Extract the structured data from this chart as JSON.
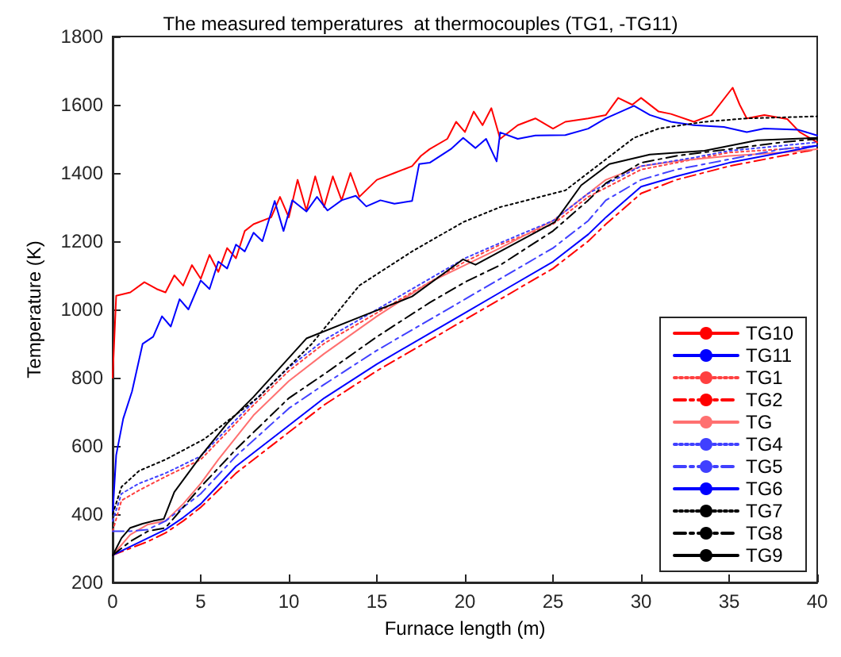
{
  "chart_data": {
    "type": "line",
    "title": "The measured temperatures  at thermocouples (TG1, -TG11)",
    "xlabel": "Furnace length (m)",
    "ylabel": "Temperature (K)",
    "xlim": [
      0,
      40
    ],
    "xticks": [
      0,
      5,
      10,
      15,
      20,
      25,
      30,
      35,
      40
    ],
    "ylim": [
      200,
      1800
    ],
    "yticks": [
      200,
      400,
      600,
      800,
      1000,
      1200,
      1400,
      1600,
      1800
    ],
    "grid": false,
    "legend": "bottom right",
    "marker": "none",
    "series": [
      {
        "name": "TG10",
        "color": "#ff0000",
        "line_style": "solid",
        "x": [
          0,
          0.2,
          1,
          1.8,
          2.5,
          3,
          3.5,
          4,
          4.5,
          5,
          5.5,
          6,
          6.5,
          7,
          7.5,
          8,
          9,
          9.5,
          10,
          10.5,
          11,
          11.5,
          12,
          12.5,
          13,
          13.5,
          14,
          15,
          16,
          17,
          17.5,
          18,
          19,
          19.5,
          20,
          20.5,
          21,
          21.5,
          22,
          23,
          24,
          25,
          25.7,
          27,
          28,
          28.7,
          29.5,
          30,
          31,
          31.7,
          33,
          34,
          35.2,
          35.6,
          36,
          37,
          38.3,
          39,
          40
        ],
        "values": [
          800,
          1040,
          1050,
          1080,
          1060,
          1050,
          1100,
          1070,
          1130,
          1090,
          1160,
          1110,
          1180,
          1150,
          1230,
          1250,
          1270,
          1330,
          1270,
          1380,
          1290,
          1390,
          1300,
          1390,
          1320,
          1400,
          1330,
          1380,
          1400,
          1420,
          1450,
          1470,
          1500,
          1550,
          1520,
          1580,
          1540,
          1590,
          1500,
          1540,
          1560,
          1530,
          1550,
          1560,
          1570,
          1620,
          1600,
          1620,
          1580,
          1573,
          1550,
          1570,
          1650,
          1600,
          1560,
          1570,
          1558,
          1520,
          1490
        ]
      },
      {
        "name": "TG11",
        "color": "#0000ff",
        "line_style": "solid",
        "x": [
          0,
          0.2,
          0.6,
          1.1,
          1.7,
          2.3,
          2.8,
          3.3,
          3.8,
          4.3,
          5,
          5.5,
          6,
          6.5,
          7,
          7.5,
          8,
          8.5,
          9.2,
          9.7,
          10.2,
          11,
          11.6,
          12.2,
          13,
          13.8,
          14.4,
          15.2,
          16,
          17,
          17.4,
          18,
          19.2,
          19.9,
          20.6,
          21.2,
          21.8,
          22,
          23,
          24,
          25.7,
          27,
          28,
          29.6,
          30.5,
          31.7,
          33,
          34.7,
          36,
          37,
          38.9,
          40
        ],
        "values": [
          400,
          573,
          680,
          760,
          899,
          920,
          980,
          950,
          1030,
          1000,
          1085,
          1060,
          1140,
          1120,
          1190,
          1170,
          1225,
          1200,
          1318,
          1230,
          1320,
          1287,
          1330,
          1290,
          1320,
          1333,
          1302,
          1320,
          1310,
          1318,
          1426,
          1430,
          1470,
          1503,
          1473,
          1500,
          1434,
          1519,
          1500,
          1510,
          1511,
          1530,
          1560,
          1597,
          1570,
          1550,
          1540,
          1535,
          1520,
          1530,
          1527,
          1510
        ]
      },
      {
        "name": "TG1",
        "color": "#ff4040",
        "line_style": "dotted",
        "x": [
          0,
          0.5,
          1.5,
          3,
          5,
          8,
          10,
          12,
          15,
          18,
          20,
          22,
          25,
          27,
          30,
          33,
          35,
          38,
          40
        ],
        "values": [
          350,
          440,
          470,
          510,
          560,
          720,
          820,
          900,
          990,
          1080,
          1140,
          1190,
          1250,
          1330,
          1410,
          1440,
          1460,
          1470,
          1480
        ]
      },
      {
        "name": "TG2",
        "color": "#ff0000",
        "line_style": "dashed",
        "x": [
          0,
          1,
          2,
          3,
          4,
          5,
          7,
          10,
          12,
          15,
          18,
          20,
          22,
          25,
          27,
          28,
          30,
          32,
          35,
          38,
          40
        ],
        "values": [
          280,
          300,
          320,
          345,
          380,
          420,
          520,
          640,
          720,
          820,
          910,
          970,
          1030,
          1120,
          1200,
          1250,
          1340,
          1380,
          1420,
          1450,
          1470
        ]
      },
      {
        "name": "TG",
        "color": "#ff7070",
        "line_style": "solid",
        "x": [
          0,
          1,
          2,
          3,
          4,
          5,
          6,
          8,
          10,
          12,
          15,
          18,
          20,
          22,
          25,
          27,
          28,
          30,
          32,
          35,
          38,
          40
        ],
        "values": [
          280,
          340,
          370,
          380,
          430,
          490,
          560,
          690,
          790,
          870,
          980,
          1080,
          1130,
          1180,
          1260,
          1340,
          1380,
          1420,
          1435,
          1450,
          1460,
          1470
        ]
      },
      {
        "name": "TG4",
        "color": "#4040ff",
        "line_style": "dotted",
        "x": [
          0,
          0.5,
          1.5,
          3,
          5,
          8,
          10,
          12,
          15,
          18,
          20,
          22,
          25,
          27,
          30,
          33,
          35,
          38,
          40
        ],
        "values": [
          380,
          460,
          490,
          520,
          570,
          730,
          830,
          910,
          1000,
          1090,
          1150,
          1195,
          1260,
          1340,
          1420,
          1445,
          1465,
          1480,
          1490
        ]
      },
      {
        "name": "TG5",
        "color": "#4040ff",
        "line_style": "dashed",
        "x": [
          0,
          1,
          2,
          3,
          4,
          5,
          7,
          10,
          12,
          15,
          18,
          20,
          22,
          25,
          27,
          28,
          30,
          32,
          35,
          38,
          40
        ],
        "values": [
          350,
          350,
          355,
          380,
          420,
          460,
          570,
          710,
          780,
          880,
          970,
          1030,
          1090,
          1180,
          1260,
          1320,
          1380,
          1410,
          1440,
          1470,
          1480
        ]
      },
      {
        "name": "TG6",
        "color": "#0000ff",
        "line_style": "solid",
        "x": [
          0,
          1,
          2,
          3,
          4,
          5,
          7,
          10,
          12,
          15,
          18,
          20,
          22,
          25,
          27,
          28,
          30,
          32,
          35,
          38,
          40
        ],
        "values": [
          280,
          305,
          330,
          355,
          390,
          430,
          540,
          660,
          740,
          840,
          930,
          990,
          1050,
          1140,
          1220,
          1270,
          1360,
          1390,
          1430,
          1460,
          1480
        ]
      },
      {
        "name": "TG7",
        "color": "#000000",
        "line_style": "dotted",
        "x": [
          0,
          0.5,
          1.5,
          3,
          5.2,
          8.3,
          11.3,
          14,
          17,
          19.9,
          22,
          25.7,
          28,
          29.6,
          31,
          33.6,
          36,
          40
        ],
        "values": [
          400,
          480,
          527,
          560,
          620,
          744,
          899,
          1070,
          1170,
          1256,
          1300,
          1349,
          1440,
          1503,
          1530,
          1550,
          1560,
          1566
        ]
      },
      {
        "name": "TG8",
        "color": "#000000",
        "line_style": "dashed",
        "x": [
          0,
          1,
          2,
          3,
          4,
          5,
          7,
          8,
          10,
          12,
          15,
          18,
          20,
          22,
          25,
          27,
          28,
          30,
          32,
          35,
          38,
          40
        ],
        "values": [
          280,
          320,
          350,
          360,
          420,
          480,
          590,
          640,
          740,
          810,
          920,
          1020,
          1080,
          1130,
          1230,
          1320,
          1370,
          1430,
          1450,
          1470,
          1490,
          1500
        ]
      },
      {
        "name": "TG9",
        "color": "#000000",
        "line_style": "solid",
        "x": [
          0,
          0.5,
          1,
          1.7,
          2.3,
          2.9,
          3.5,
          5,
          6.5,
          8,
          11,
          14,
          17,
          19.9,
          20.6,
          22,
          25.1,
          26.6,
          28.2,
          30.5,
          33.6,
          36.6,
          40
        ],
        "values": [
          279,
          330,
          360,
          372,
          380,
          386,
          465,
          570,
          666,
          744,
          915,
          977,
          1038,
          1147,
          1131,
          1170,
          1256,
          1364,
          1426,
          1454,
          1465,
          1496,
          1503
        ]
      }
    ]
  }
}
